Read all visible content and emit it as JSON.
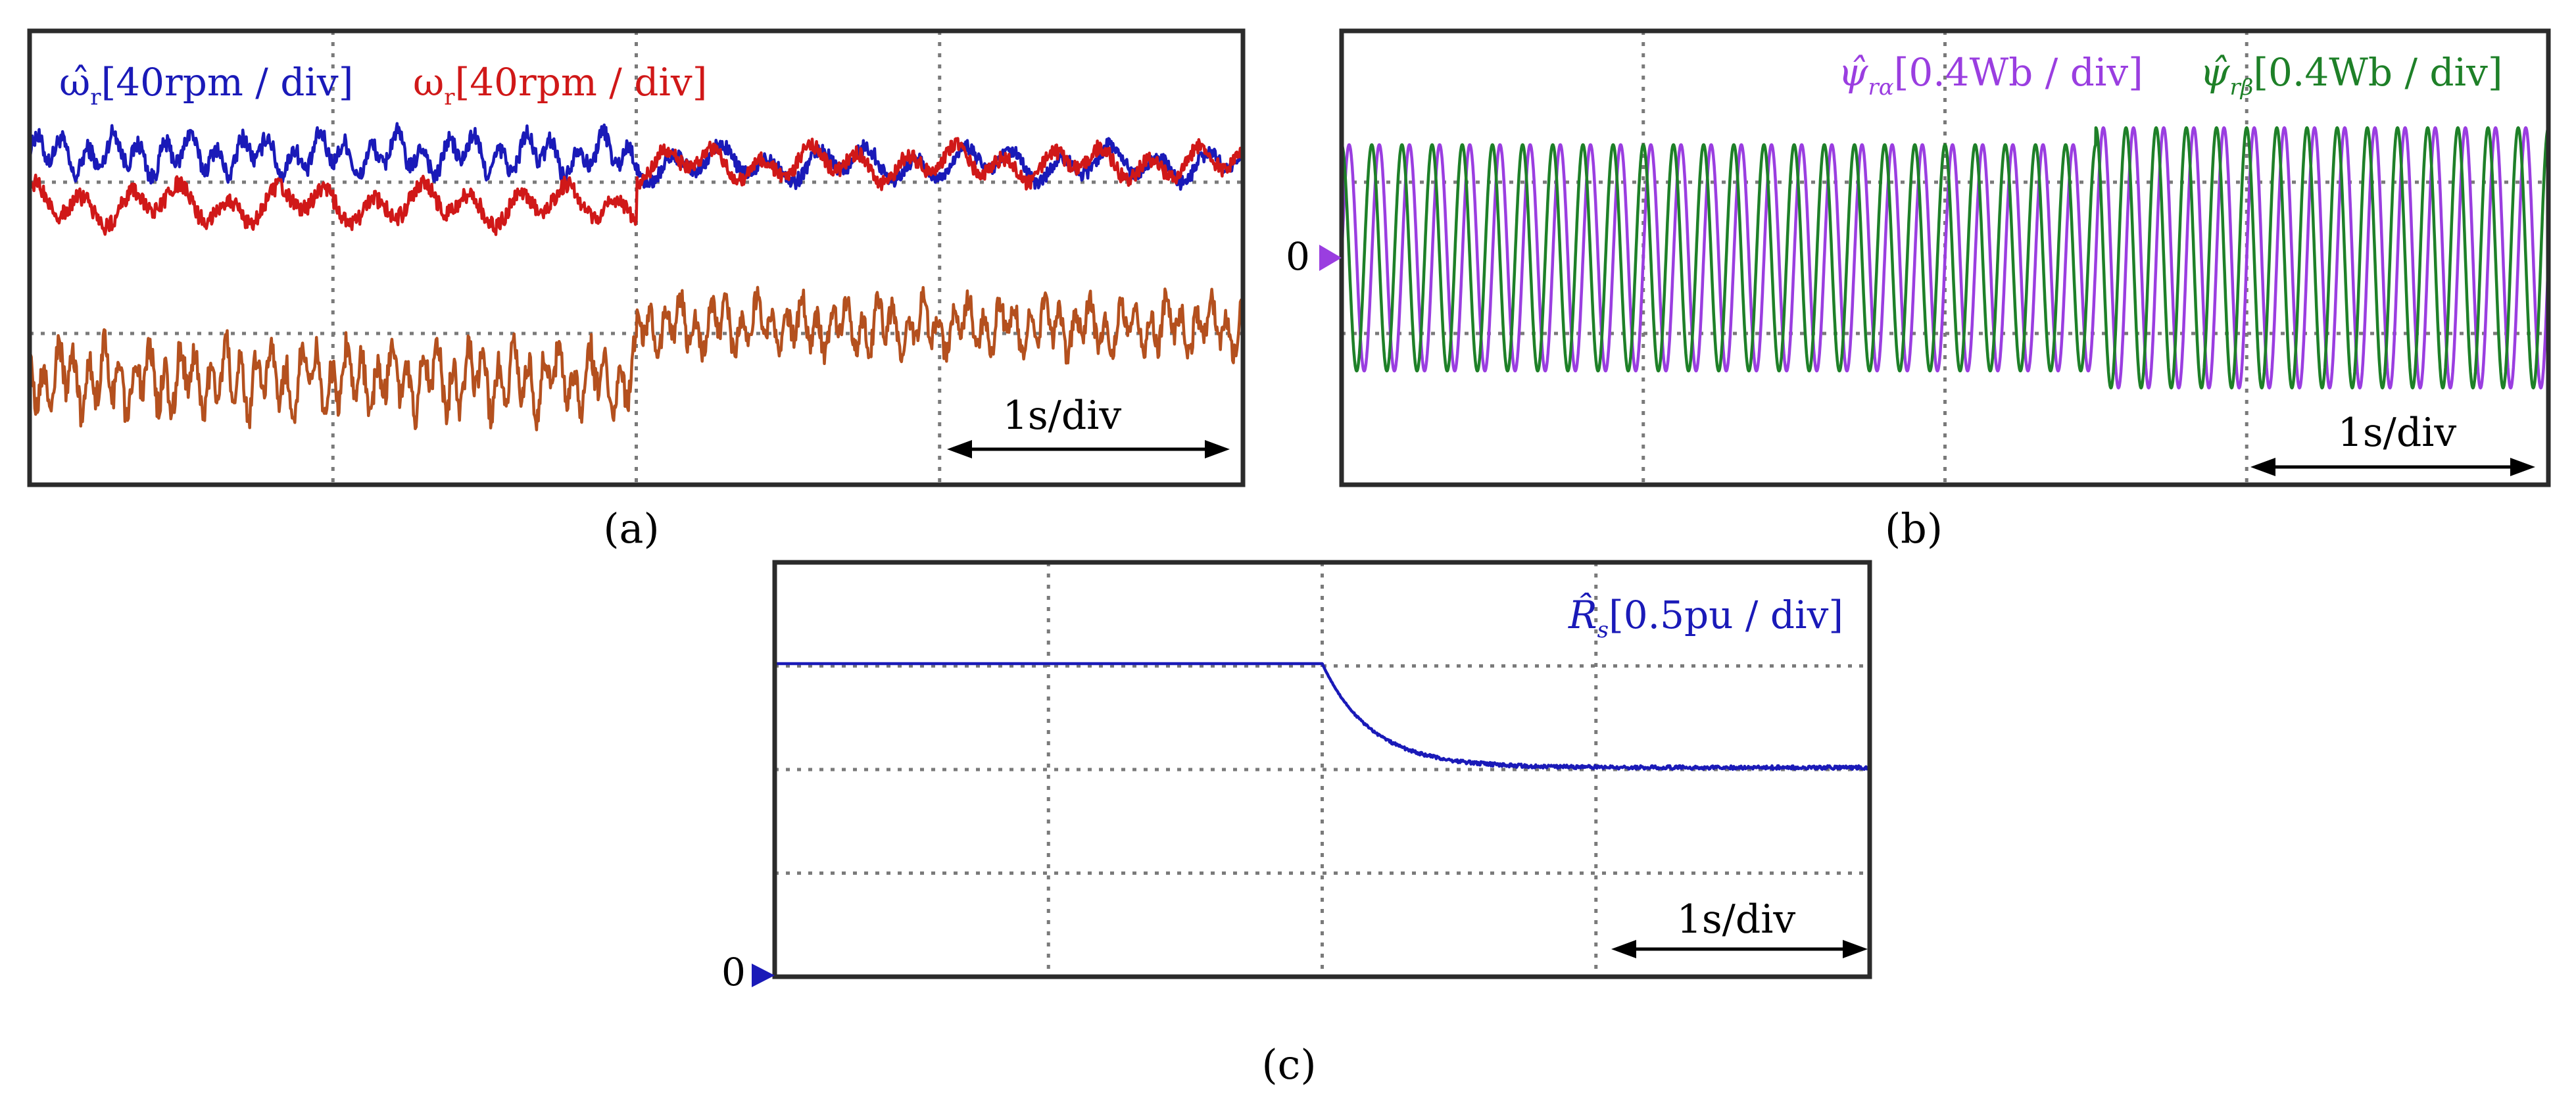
{
  "chart_data": [
    {
      "panel": "a",
      "type": "line",
      "caption": "(a)",
      "scale_label": "1s/div",
      "series": [
        {
          "name": "omega_r_hat",
          "label_symbol": "ω̂",
          "label_sub": "r",
          "label_text": "[40rpm / div]",
          "color": "#1a1ab8",
          "segments": [
            {
              "t0": 0,
              "t1": 2,
              "level": 1.18,
              "amp": 0.17,
              "period": 0.085
            },
            {
              "t0": 2,
              "t1": 4,
              "level": 1.12,
              "amp": 0.14,
              "period": 0.16
            }
          ]
        },
        {
          "name": "omega_r",
          "label_symbol": "ω",
          "label_sub": "r",
          "label_text": "[40rpm / div]",
          "color": "#d01818",
          "segments": [
            {
              "t0": 0,
              "t1": 2,
              "level": 0.85,
              "amp": 0.16,
              "period": 0.16
            },
            {
              "t0": 2,
              "t1": 4,
              "level": 1.12,
              "amp": 0.14,
              "period": 0.16
            }
          ]
        },
        {
          "name": "speed_error",
          "label_symbol": "",
          "label_sub": "",
          "label_text": "",
          "color": "#b4501e",
          "segments": [
            {
              "t0": 0,
              "t1": 2,
              "level": -0.3,
              "amp": 0.28,
              "period": 0.05
            },
            {
              "t0": 2,
              "t1": 4,
              "level": 0.05,
              "amp": 0.22,
              "period": 0.05
            }
          ]
        }
      ],
      "x_divisions": 4,
      "y_divisions": 3
    },
    {
      "panel": "b",
      "type": "line",
      "caption": "(b)",
      "scale_label": "1s/div",
      "zero_label": "0",
      "series": [
        {
          "name": "psi_r_alpha_hat",
          "label_symbol": "ψ̂",
          "label_sub": "rα",
          "label_text": "[0.4Wb / div]",
          "color": "#9a3ee0",
          "amplitude_before": 1.0,
          "amplitude_after": 1.15,
          "frequency_hz": 10,
          "phase": 0
        },
        {
          "name": "psi_r_beta_hat",
          "label_symbol": "ψ̂",
          "label_sub": "rβ",
          "label_text": "[0.4Wb / div]",
          "color": "#1e8028",
          "amplitude_before": 1.0,
          "amplitude_after": 1.15,
          "frequency_hz": 10,
          "phase": 1.5708
        }
      ],
      "change_time_s": 2.5,
      "x_divisions": 4,
      "y_divisions": 3
    },
    {
      "panel": "c",
      "type": "line",
      "caption": "(c)",
      "scale_label": "1s/div",
      "zero_label": "0",
      "series": [
        {
          "name": "Rs_hat",
          "label_symbol": "R̂",
          "label_sub": "s",
          "label_text": "[0.5pu / div]",
          "color": "#1a1ab8",
          "initial_divs": 3.0,
          "final_divs": 2.0,
          "step_time_s": 2.0,
          "settle_time_s": 0.5
        }
      ],
      "x_divisions": 4,
      "y_divisions": 4
    }
  ]
}
